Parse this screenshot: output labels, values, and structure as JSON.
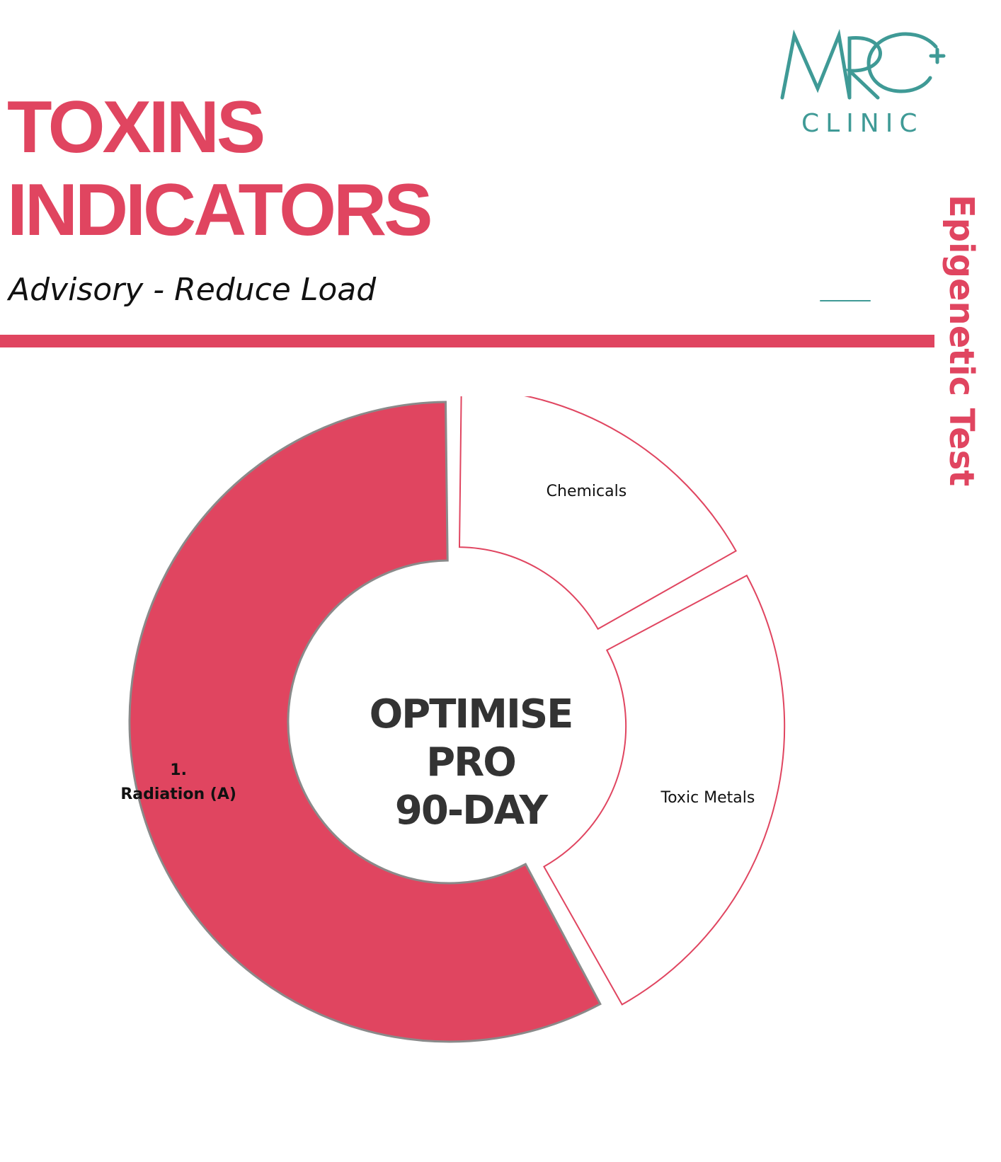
{
  "header": {
    "title_line1": "TOXINS",
    "title_line2": "INDICATORS",
    "subtitle": "Advisory - Reduce Load",
    "side_tag": "Epigenetic Test"
  },
  "logo": {
    "monogram": "MRC",
    "word": "CLINIC"
  },
  "colors": {
    "accent": "#e04560",
    "teal": "#3f9a96",
    "text_dark": "#333333"
  },
  "center_label": {
    "line1": "OPTIMISE",
    "line2": "PRO",
    "line3": "90-DAY"
  },
  "chart_data": {
    "type": "pie",
    "donut": true,
    "categories": [
      "Chemicals",
      "Toxic Metals",
      "Radiation (A)"
    ],
    "values": [
      17,
      25,
      58
    ],
    "highlighted": [
      "Radiation (A)"
    ],
    "slice_labels": [
      "Chemicals",
      "Toxic Metals",
      "1.\nRadiation (A)"
    ],
    "title": ""
  }
}
